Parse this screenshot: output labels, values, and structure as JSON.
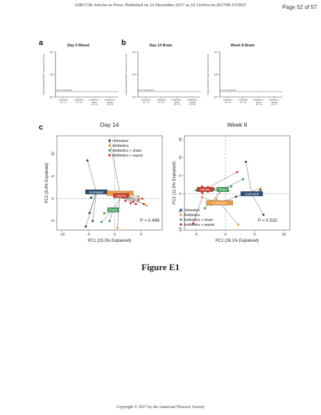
{
  "header": {
    "journal_line": "AJRCCM Articles in Press. Published on 12-December-2017 as 10.1164/rccm.201708-1559OC",
    "page": "Page 52 of 57"
  },
  "panel_letters": {
    "a": "a",
    "b": "b",
    "c": "c"
  },
  "figure_caption": "Figure E1",
  "footer": "Copyright © 2017 by the American Thoracic Society",
  "colors": {
    "untreated": "#2a4d73",
    "antibiotics": "#ef9a3b",
    "sham": "#3aa357",
    "sepsis": "#cc3b2c"
  },
  "chart_data": [
    {
      "type": "scatter",
      "title": "Day 5 Blood",
      "ylabel": "Cultured Bacterial Burden (Colonies/mL Tissue)",
      "y_ticks": [
        "10⁴",
        "10²",
        "10⁰"
      ],
      "limit_label": "Limit of detection",
      "categories": [
        "Untreated (N = 4)",
        "Antibiotics (N = 6)",
        "Antibiotics + Sham (N = 4)",
        "Antibiotics + Sepsis (N = 8)"
      ],
      "values": []
    },
    {
      "type": "scatter",
      "title": "Day 14 Brain",
      "ylabel": "Cultured Bacterial Burden (Colonies/mL Tissue)",
      "y_ticks": [
        "10⁴",
        "10²",
        "10⁰"
      ],
      "limit_label": "Limit of detection",
      "categories": [
        "Untreated (N = 4)",
        "Antibiotics (N = 6)",
        "Antibiotics + Sham (N = 4)",
        "Antibiotics + Sepsis (N = 8)"
      ],
      "values": []
    },
    {
      "type": "scatter",
      "title": "Week 8 Brain",
      "ylabel": "Cultured Bacterial Burden (Colonies/mL Tissue)",
      "y_ticks": [
        "10⁴",
        "10²",
        "10⁰"
      ],
      "limit_label": "Limit of detection",
      "categories": [
        "Untreated (N = 4)",
        "Antibiotics (N = 6)",
        "Antibiotics + Sham (N = 6)",
        "Antibiotics + Sepsis (N = 7)"
      ],
      "values": []
    },
    {
      "type": "scatter",
      "title": "Day 14",
      "xlabel": "PC1 (25.3% Explained)",
      "ylabel": "PC2 (8.4% Explained)",
      "xlim": [
        -11,
        9
      ],
      "ylim": [
        -7,
        14
      ],
      "x_ticks": [
        -10,
        -5,
        0,
        5
      ],
      "y_ticks": [
        -5,
        0,
        5,
        10
      ],
      "p_value": "P = 0.498",
      "legend": [
        "Untreated",
        "Antibiotics",
        "Antibiotics + sham",
        "Antibiotics + sepsis"
      ],
      "centroid_labels": [
        "Untreated",
        "Antibiotics",
        "Sham",
        "Sepsis"
      ],
      "series": [
        {
          "name": "Untreated",
          "centroid": [
            -3.5,
            1.5
          ],
          "points": [
            [
              -5.2,
              8.5
            ],
            [
              -5.5,
              -6.2
            ],
            [
              -4.2,
              -5
            ],
            [
              -4.8,
              -3.2
            ],
            [
              -4.5,
              0.2
            ]
          ]
        },
        {
          "name": "Antibiotics",
          "centroid": [
            1,
            1.2
          ],
          "points": [
            [
              -1,
              13
            ],
            [
              0.5,
              -6.5
            ],
            [
              4.5,
              0.5
            ],
            [
              6,
              -1.5
            ]
          ]
        },
        {
          "name": "Antibiotics + sham",
          "centroid": [
            -0.3,
            -2.5
          ],
          "points": [
            [
              -2.5,
              -5.2
            ],
            [
              -1,
              -5
            ],
            [
              1.2,
              0.5
            ],
            [
              -2,
              -3.3
            ]
          ]
        },
        {
          "name": "Antibiotics + sepsis",
          "centroid": [
            1.2,
            0.7
          ],
          "points": [
            [
              5.5,
              -1.2
            ],
            [
              3.5,
              -0.7
            ],
            [
              4.5,
              -0.3
            ],
            [
              5.2,
              0
            ],
            [
              2,
              -0.5
            ],
            [
              3,
              -1
            ],
            [
              1.5,
              0.2
            ],
            [
              4,
              -1.2
            ]
          ]
        }
      ]
    },
    {
      "type": "scatter",
      "title": "Week 8",
      "xlabel": "PC1 (26.1% Explained)",
      "ylabel": "PC2 (11.5% Explained)",
      "xlim": [
        -7,
        11
      ],
      "ylim": [
        -10,
        16
      ],
      "x_ticks": [
        -5,
        0,
        5,
        10
      ],
      "y_ticks": [
        -10,
        -5,
        0,
        5,
        10,
        15
      ],
      "p_value": "P = 0.532",
      "legend": [
        "Untreated",
        "Antibiotics",
        "Antibiotics + sham",
        "Antibiotics + sepsis"
      ],
      "centroid_labels": [
        "Untreated",
        "Antibiotics",
        "Sham",
        "Sepsis"
      ],
      "series": [
        {
          "name": "Untreated",
          "centroid": [
            4.5,
            0
          ],
          "points": [
            [
              3.5,
              8.8
            ],
            [
              6.5,
              -5.8
            ],
            [
              6,
              1
            ],
            [
              1.8,
              -0.8
            ]
          ]
        },
        {
          "name": "Antibiotics",
          "centroid": [
            -1,
            -2.5
          ],
          "points": [
            [
              2.2,
              -8.5
            ],
            [
              -4,
              -1
            ],
            [
              -2.5,
              -3
            ],
            [
              6,
              1.5
            ],
            [
              -1.5,
              -1.5
            ]
          ]
        },
        {
          "name": "Antibiotics + sham",
          "centroid": [
            -0.5,
            1.2
          ],
          "points": [
            [
              -3.5,
              -4
            ],
            [
              -2.5,
              -3
            ],
            [
              1,
              2
            ],
            [
              0.5,
              0.8
            ],
            [
              -2,
              1
            ],
            [
              -5,
              1
            ],
            [
              3,
              4
            ]
          ]
        },
        {
          "name": "Antibiotics + sepsis",
          "centroid": [
            -3.5,
            1.2
          ],
          "points": [
            [
              -5.5,
              -8.2
            ],
            [
              -4,
              2
            ],
            [
              -3,
              0.6
            ],
            [
              2,
              6
            ],
            [
              -4.5,
              1.5
            ],
            [
              -3,
              1.8
            ],
            [
              -4,
              0.3
            ],
            [
              -2,
              1.5
            ]
          ]
        }
      ]
    }
  ]
}
